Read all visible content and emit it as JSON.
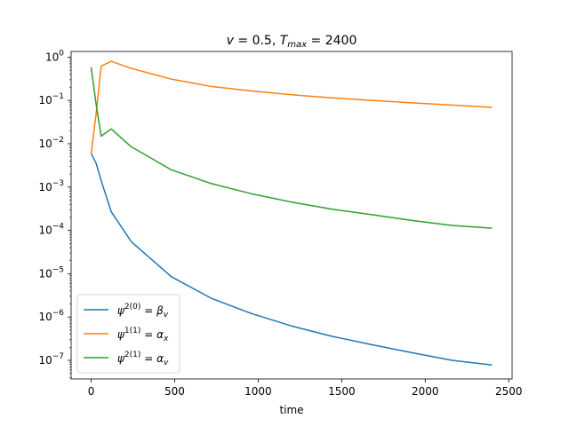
{
  "chart_data": {
    "type": "line",
    "title": "v = 0.5, T_max = 2400",
    "title_parts": {
      "v_sym": "v",
      "v_eq": " = 0.5, ",
      "t_sym": "T",
      "t_sub": "max",
      "t_eq": " = 2400"
    },
    "xlabel": "time",
    "ylabel": "",
    "xlim": [
      -120,
      2520
    ],
    "ylim_log10": [
      -7.43,
      0.13
    ],
    "yscale": "log",
    "grid": false,
    "legend_position": "lower-left",
    "x_ticks": [
      0,
      500,
      1000,
      1500,
      2000,
      2500
    ],
    "x_tick_labels": [
      "0",
      "500",
      "1000",
      "1500",
      "2000",
      "2500"
    ],
    "y_tick_exponents": [
      0,
      -1,
      -2,
      -3,
      -4,
      -5,
      -6,
      -7
    ],
    "y_tick_base": "10",
    "y_tick_labels": [
      "0",
      "−1",
      "−2",
      "−3",
      "−4",
      "−5",
      "−6",
      "−7"
    ],
    "series": [
      {
        "name": "ψ^{2(0)} = β_v",
        "legend": {
          "sym": "ψ",
          "sup": "2(0)",
          "eq": " = ",
          "rhs": "β",
          "sub": "v"
        },
        "color": "#1f77b4",
        "x": [
          0,
          30,
          60,
          120,
          240,
          480,
          720,
          960,
          1200,
          1440,
          1680,
          1920,
          2160,
          2400
        ],
        "y": [
          0.006,
          0.0035,
          0.0014,
          0.00027,
          5.5e-05,
          8.5e-06,
          2.7e-06,
          1.2e-06,
          6.2e-07,
          3.6e-07,
          2.3e-07,
          1.5e-07,
          1e-07,
          7.8e-08
        ]
      },
      {
        "name": "ψ^{1(1)} = α_x",
        "legend": {
          "sym": "ψ",
          "sup": "1(1)",
          "eq": " = ",
          "rhs": "α",
          "sub": "x"
        },
        "color": "#ff7f0e",
        "x": [
          0,
          30,
          60,
          120,
          240,
          480,
          720,
          960,
          1200,
          1440,
          1680,
          1920,
          2160,
          2400
        ],
        "y": [
          0.006,
          0.05,
          0.62,
          0.8,
          0.55,
          0.31,
          0.21,
          0.165,
          0.135,
          0.115,
          0.1,
          0.088,
          0.078,
          0.069
        ]
      },
      {
        "name": "ψ^{2(1)} = α_v",
        "legend": {
          "sym": "ψ",
          "sup": "2(1)",
          "eq": " = ",
          "rhs": "α",
          "sub": "v"
        },
        "color": "#2ca02c",
        "x": [
          0,
          30,
          60,
          120,
          240,
          480,
          720,
          960,
          1200,
          1440,
          1680,
          1920,
          2160,
          2400
        ],
        "y": [
          0.58,
          0.08,
          0.015,
          0.022,
          0.0085,
          0.0025,
          0.0012,
          0.0007,
          0.00045,
          0.00031,
          0.00023,
          0.00017,
          0.00013,
          0.000112
        ]
      }
    ]
  }
}
